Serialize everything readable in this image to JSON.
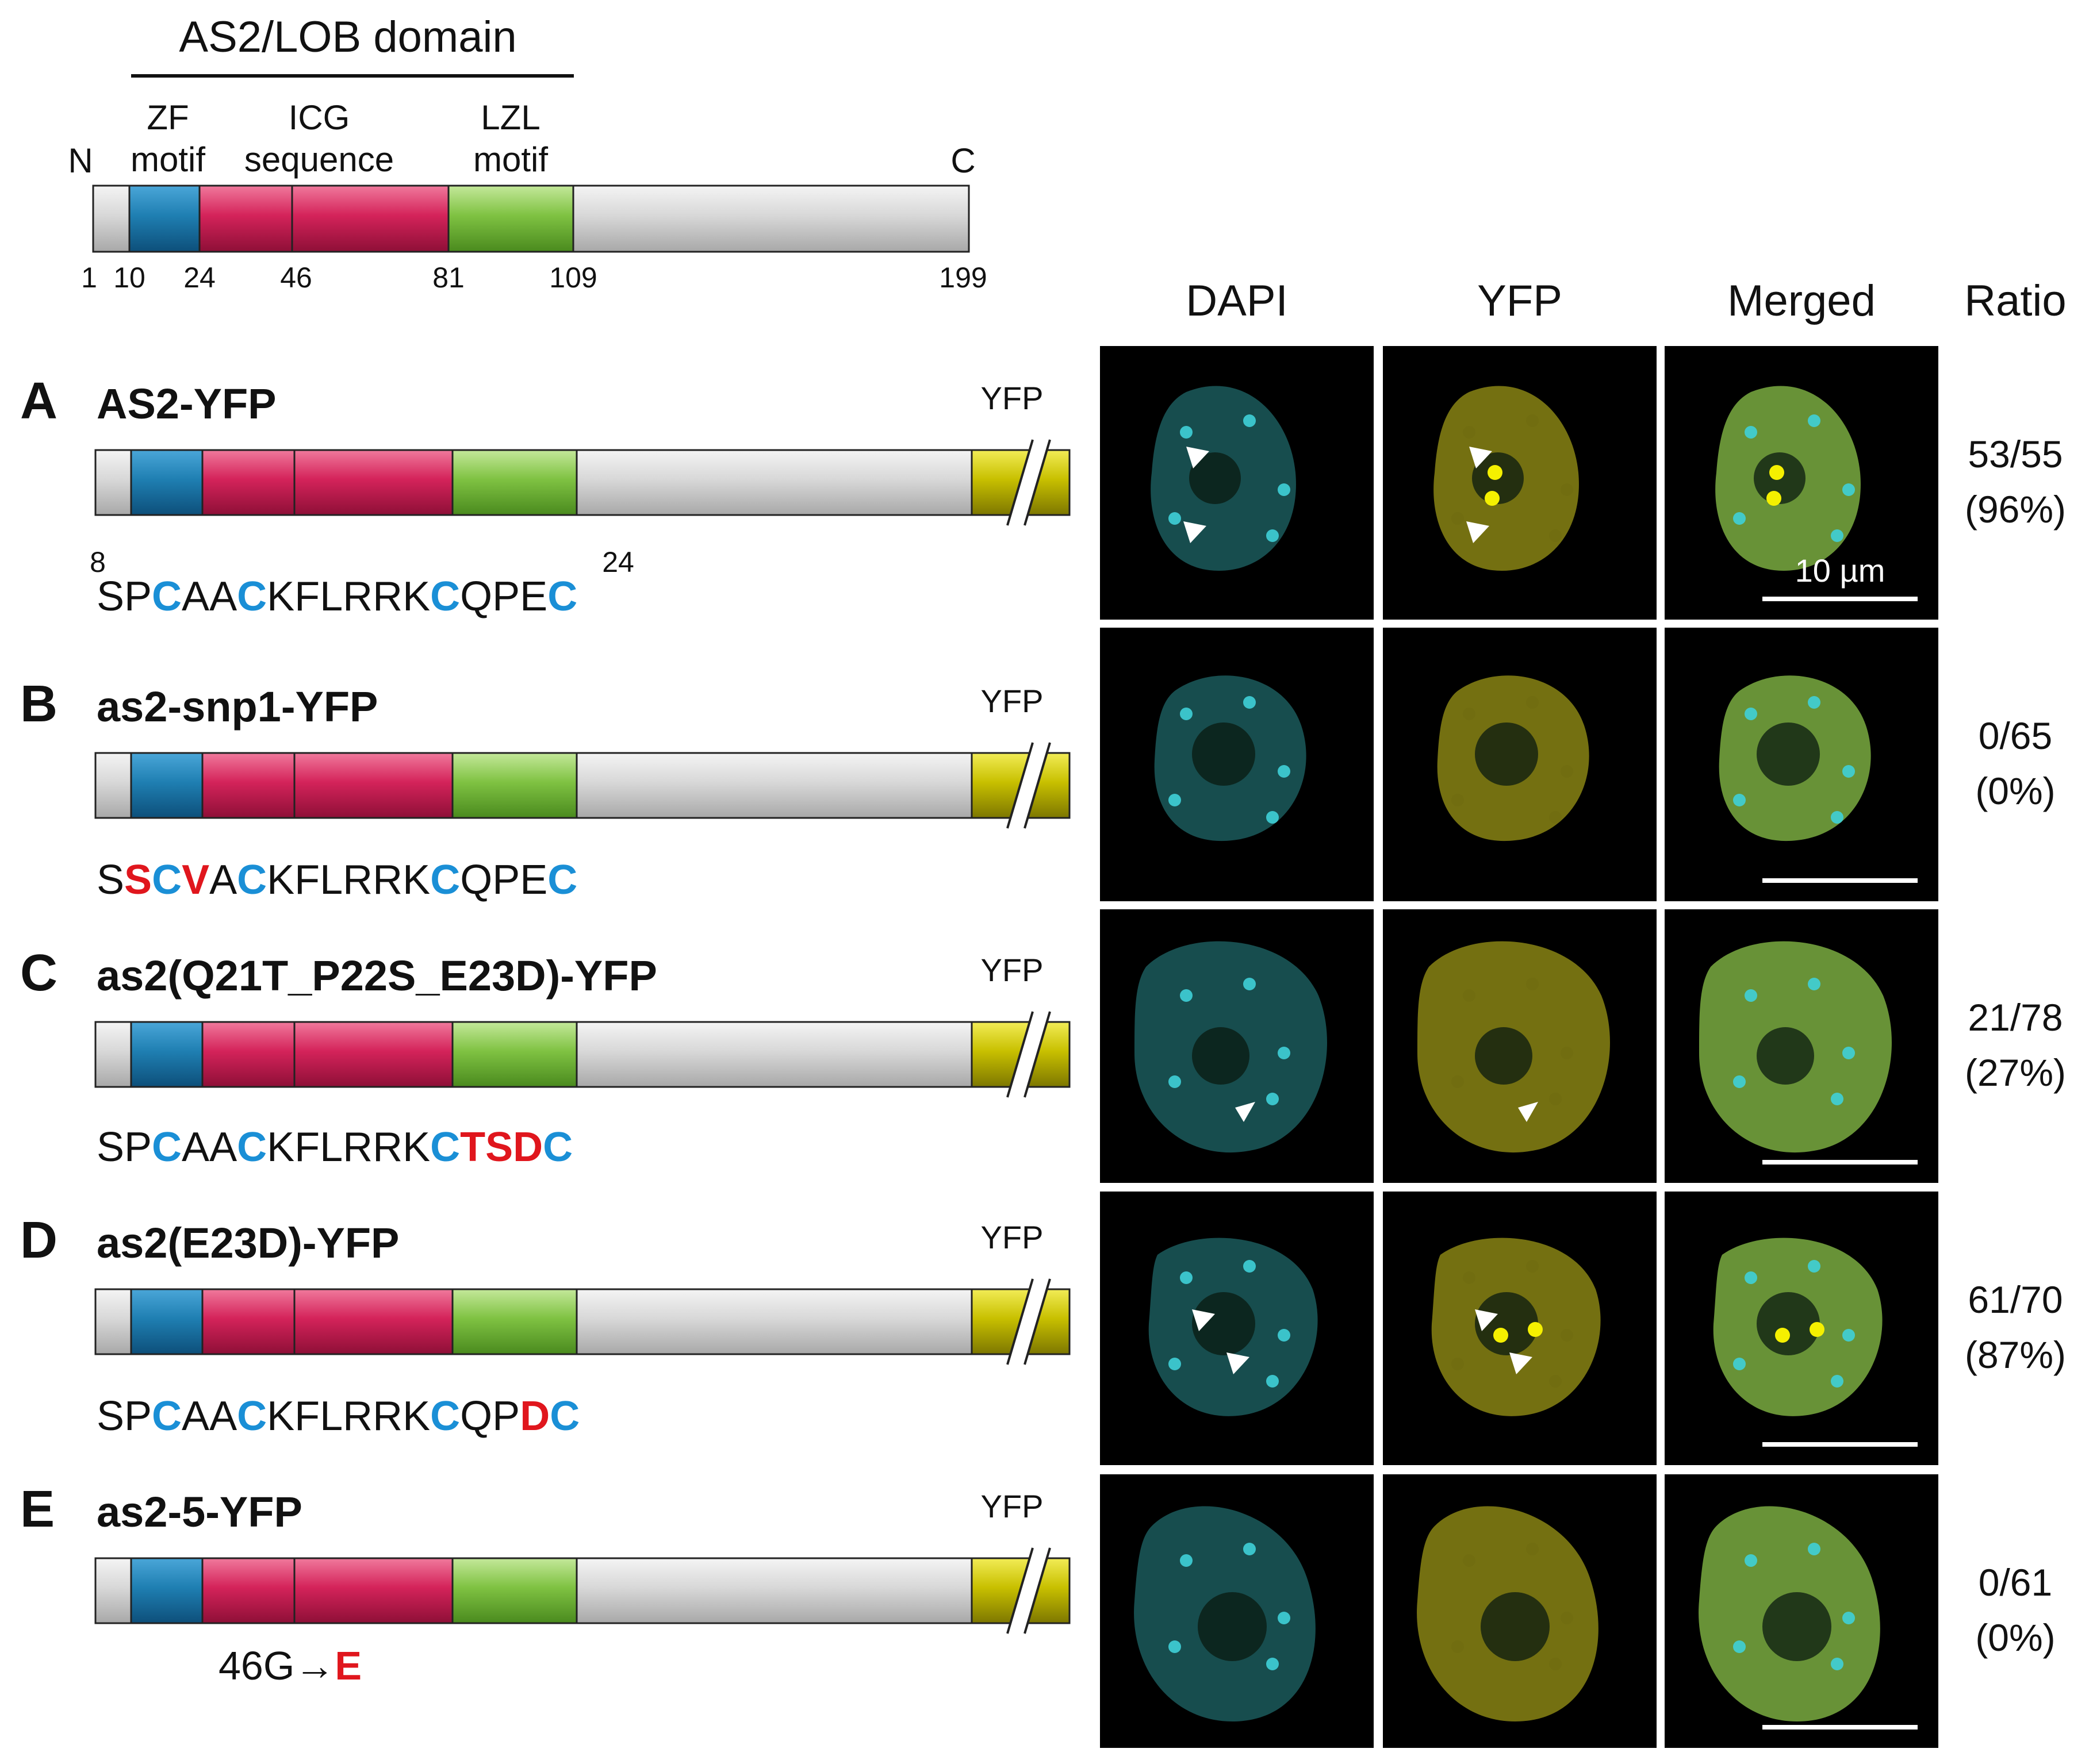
{
  "domain_overview": {
    "title": "AS2/LOB domain",
    "motifs": [
      {
        "label_line1": "ZF",
        "label_line2": "motif"
      },
      {
        "label_line1": "ICG",
        "label_line2": "sequence"
      },
      {
        "label_line1": "LZL",
        "label_line2": "motif"
      }
    ],
    "n_label": "N",
    "c_label": "C",
    "positions": [
      "1",
      "10",
      "24",
      "46",
      "81",
      "109",
      "199"
    ]
  },
  "columns": {
    "dapi": "DAPI",
    "yfp": "YFP",
    "merged": "Merged",
    "ratio": "Ratio"
  },
  "yfp_tag": "YFP",
  "scale_bar_label": "10 µm",
  "colors": {
    "zf_blue": "#1f7fb2",
    "icg_red": "#d4235a",
    "lzl_green": "#7fc242",
    "body_gray": "#d0d0d0",
    "yfp_yellow": "#c8c000",
    "mutation_red": "#e0161d",
    "cysteine_blue": "#1a8fd6"
  },
  "constructs": [
    {
      "letter": "A",
      "name": "AS2-YFP",
      "range_start": "8",
      "range_end": "24",
      "sequence": [
        {
          "t": "SP",
          "k": "n"
        },
        {
          "t": "C",
          "k": "c"
        },
        {
          "t": "AA",
          "k": "n"
        },
        {
          "t": "C",
          "k": "c"
        },
        {
          "t": "KFLRRK",
          "k": "n"
        },
        {
          "t": "C",
          "k": "c"
        },
        {
          "t": "QPE",
          "k": "n"
        },
        {
          "t": "C",
          "k": "c"
        }
      ],
      "ratio_count": "53/55",
      "ratio_percent": "(96%)",
      "foci": true
    },
    {
      "letter": "B",
      "name": "as2-snp1-YFP",
      "sequence": [
        {
          "t": "S",
          "k": "n"
        },
        {
          "t": "S",
          "k": "m"
        },
        {
          "t": "C",
          "k": "c"
        },
        {
          "t": "V",
          "k": "m"
        },
        {
          "t": "A",
          "k": "n"
        },
        {
          "t": "C",
          "k": "c"
        },
        {
          "t": "KFLRRK",
          "k": "n"
        },
        {
          "t": "C",
          "k": "c"
        },
        {
          "t": "QPE",
          "k": "n"
        },
        {
          "t": "C",
          "k": "c"
        }
      ],
      "ratio_count": "0/65",
      "ratio_percent": "(0%)",
      "foci": false
    },
    {
      "letter": "C",
      "name": "as2(Q21T_P22S_E23D)-YFP",
      "sequence": [
        {
          "t": "SP",
          "k": "n"
        },
        {
          "t": "C",
          "k": "c"
        },
        {
          "t": "AA",
          "k": "n"
        },
        {
          "t": "C",
          "k": "c"
        },
        {
          "t": "KFLRRK",
          "k": "n"
        },
        {
          "t": "C",
          "k": "c"
        },
        {
          "t": "TSD",
          "k": "m"
        },
        {
          "t": "C",
          "k": "c"
        }
      ],
      "ratio_count": "21/78",
      "ratio_percent": "(27%)",
      "foci": false
    },
    {
      "letter": "D",
      "name": "as2(E23D)-YFP",
      "sequence": [
        {
          "t": "SP",
          "k": "n"
        },
        {
          "t": "C",
          "k": "c"
        },
        {
          "t": "AA",
          "k": "n"
        },
        {
          "t": "C",
          "k": "c"
        },
        {
          "t": "KFLRRK",
          "k": "n"
        },
        {
          "t": "C",
          "k": "c"
        },
        {
          "t": "QP",
          "k": "n"
        },
        {
          "t": "D",
          "k": "m"
        },
        {
          "t": "C",
          "k": "c"
        }
      ],
      "ratio_count": "61/70",
      "ratio_percent": "(87%)",
      "foci": true
    },
    {
      "letter": "E",
      "name": "as2-5-YFP",
      "mutation_prefix": "46G→",
      "mutation_residue": "E",
      "ratio_count": "0/61",
      "ratio_percent": "(0%)",
      "foci": false
    }
  ]
}
